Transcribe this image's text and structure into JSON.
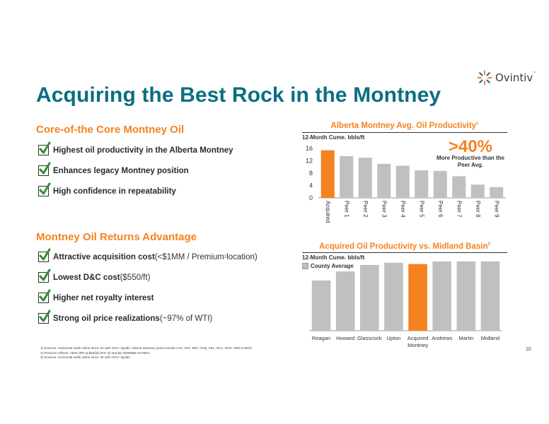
{
  "brand": {
    "logo_text": "Ovintiv",
    "trademark": "™",
    "accent": "#f58220",
    "teal": "#0b6e80",
    "bar_gray": "#c0c0c0",
    "logo_icon": "ovintiv-burst-icon"
  },
  "title": "Acquiring the Best Rock in the Montney",
  "section1": {
    "heading": "Core-of-the Core Montney Oil",
    "bullets": [
      {
        "bold": "Highest oil productivity in the Alberta Montney",
        "light": ""
      },
      {
        "bold": "Enhances legacy Montney position",
        "light": ""
      },
      {
        "bold": "High confidence in repeatability",
        "light": ""
      }
    ]
  },
  "section2": {
    "heading": "Montney Oil Returns Advantage",
    "bullets": [
      {
        "bold": "Attractive acquisition cost",
        "light_pre": " (<$1MM / Premium",
        "sup": "2",
        "light_post": " location)"
      },
      {
        "bold": "Lowest D&C cost",
        "light_pre": " ($550/ft)",
        "sup": "",
        "light_post": ""
      },
      {
        "bold": "Higher net royalty interest",
        "light_pre": "",
        "sup": "",
        "light_post": ""
      },
      {
        "bold": "Strong oil price realizations",
        "light_pre": " (~97% of WTI)",
        "sup": "",
        "light_post": ""
      }
    ]
  },
  "chart1_header": {
    "title": "Alberta Montney Avg. Oil Productivity",
    "sup": "1",
    "ylabel": "12-Month Cume. bbls/ft"
  },
  "callout": {
    "big": ">40%",
    "line1": "More Productive than the",
    "line2": "Peer Avg."
  },
  "chart2_header": {
    "title": "Acquired Oil Productivity vs. Midland Basin",
    "sup": "3",
    "ylabel": "12-Month Cume. bbls/ft",
    "legend": "County Average"
  },
  "chart_data": [
    {
      "type": "bar",
      "title": "Alberta Montney Avg. Oil Productivity",
      "ylabel": "12-Month Cume. bbls/ft",
      "xlabel": "",
      "ylim": [
        0,
        16
      ],
      "yticks": [
        0,
        4,
        8,
        12,
        16
      ],
      "grid": false,
      "categories": [
        "Acquired",
        "Peer 1",
        "Peer 2",
        "Peer 3",
        "Peer 4",
        "Peer 5",
        "Peer 6",
        "Peer 7",
        "Peer 8",
        "Peer 9"
      ],
      "values": [
        15.4,
        13.5,
        13.0,
        11.0,
        10.4,
        8.9,
        8.7,
        7.0,
        4.3,
        3.5
      ],
      "highlight_index": 0
    },
    {
      "type": "bar",
      "title": "Acquired Oil Productivity vs. Midland Basin",
      "ylabel": "12-Month Cume. bbls/ft",
      "xlabel": "",
      "ylim": [
        0,
        16
      ],
      "legend": [
        "County Average"
      ],
      "grid": false,
      "categories": [
        "Reagan",
        "Howard",
        "Glasscock",
        "Upton",
        "Acquired Montney",
        "Andrews",
        "Martin",
        "Midland"
      ],
      "category_lines": [
        [
          "Reagan"
        ],
        [
          "Howard"
        ],
        [
          "Glasscock"
        ],
        [
          "Upton"
        ],
        [
          "Acquired",
          "Montney"
        ],
        [
          "Andrews"
        ],
        [
          "Martin"
        ],
        [
          "Midland"
        ]
      ],
      "values": [
        11.6,
        13.7,
        15.2,
        15.7,
        15.4,
        16.1,
        16.1,
        16.2
      ],
      "highlight_index": 4,
      "data_labels": [
        "",
        "",
        "",
        "",
        "15.4",
        "",
        "",
        ""
      ]
    }
  ],
  "footnotes": [
    "1) Enverus. Horizontal wells online since '22 with 10%+ liquids. Alberta Montney peers include AAV, ARX, BIR, CNQ, KEL, NVA, SCR, VRN & WCP.",
    "2) Premium reflects >35% IRR at $55/bbl WTI oil and $2.75/MMBtu NYMEX.",
    "3) Enverus. Horizontal wells online since '22 with 10%+ liquids."
  ],
  "page_number": "10"
}
